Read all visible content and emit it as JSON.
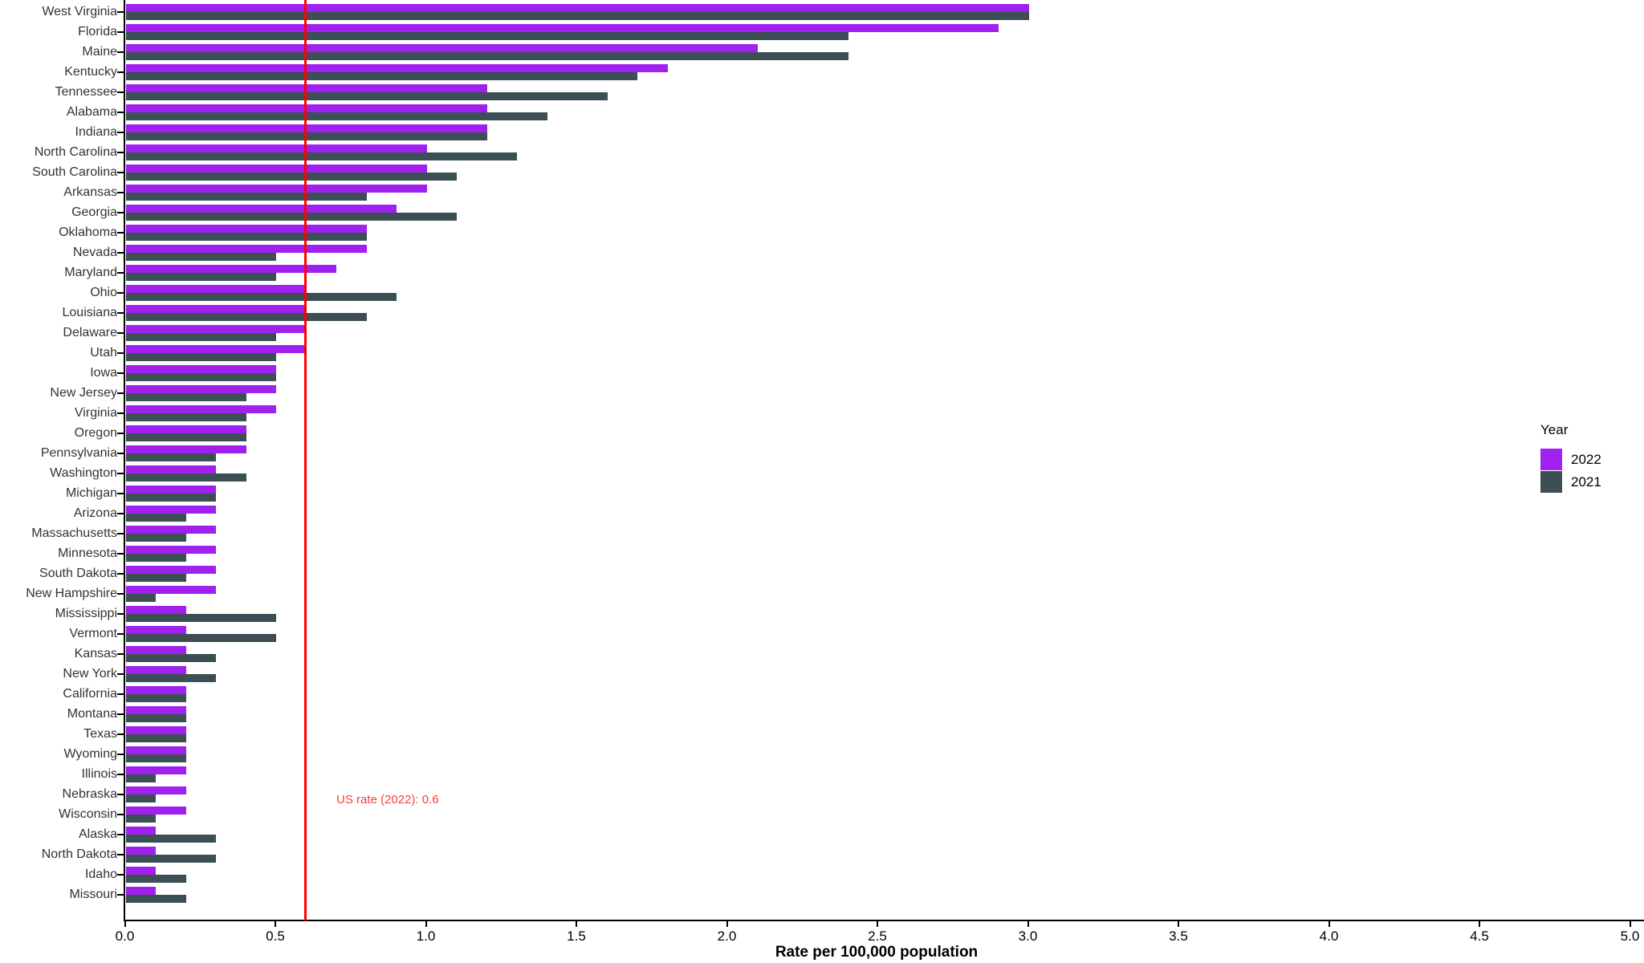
{
  "chart_data": {
    "type": "bar",
    "orientation": "horizontal",
    "title": "",
    "xlabel": "Rate per 100,000 population",
    "ylabel": "",
    "xlim": [
      0.0,
      5.0
    ],
    "xtick_labels": [
      "0.0",
      "0.5",
      "1.0",
      "1.5",
      "2.0",
      "2.5",
      "3.0",
      "3.5",
      "4.0",
      "4.5",
      "5.0"
    ],
    "grid": "off",
    "legend_position": "right",
    "legend_title": "Year",
    "categories": [
      "West Virginia",
      "Florida",
      "Maine",
      "Kentucky",
      "Tennessee",
      "Alabama",
      "Indiana",
      "North Carolina",
      "South Carolina",
      "Arkansas",
      "Georgia",
      "Oklahoma",
      "Nevada",
      "Maryland",
      "Ohio",
      "Louisiana",
      "Delaware",
      "Utah",
      "Iowa",
      "New Jersey",
      "Virginia",
      "Oregon",
      "Pennsylvania",
      "Washington",
      "Michigan",
      "Arizona",
      "Massachusetts",
      "Minnesota",
      "South Dakota",
      "New Hampshire",
      "Mississippi",
      "Vermont",
      "Kansas",
      "New York",
      "California",
      "Montana",
      "Texas",
      "Wyoming",
      "Illinois",
      "Nebraska",
      "Wisconsin",
      "Alaska",
      "North Dakota",
      "Idaho",
      "Missouri"
    ],
    "series": [
      {
        "name": "2022",
        "color": "#A020F0",
        "values": [
          3.0,
          2.9,
          2.1,
          1.8,
          1.2,
          1.2,
          1.2,
          1.0,
          1.0,
          1.0,
          0.9,
          0.8,
          0.8,
          0.7,
          0.6,
          0.6,
          0.6,
          0.6,
          0.5,
          0.5,
          0.5,
          0.4,
          0.4,
          0.3,
          0.3,
          0.3,
          0.3,
          0.3,
          0.3,
          0.3,
          0.2,
          0.2,
          0.2,
          0.2,
          0.2,
          0.2,
          0.2,
          0.2,
          0.2,
          0.2,
          0.2,
          0.1,
          0.1,
          0.1,
          0.1
        ]
      },
      {
        "name": "2021",
        "color": "#3C4F54",
        "values": [
          3.0,
          2.4,
          2.4,
          1.7,
          1.6,
          1.4,
          1.2,
          1.3,
          1.1,
          0.8,
          1.1,
          0.8,
          0.5,
          0.5,
          0.9,
          0.8,
          0.5,
          0.5,
          0.5,
          0.4,
          0.4,
          0.4,
          0.3,
          0.4,
          0.3,
          0.2,
          0.2,
          0.2,
          0.2,
          0.1,
          0.5,
          0.5,
          0.3,
          0.3,
          0.2,
          0.2,
          0.2,
          0.2,
          0.1,
          0.1,
          0.1,
          0.3,
          0.3,
          0.2,
          0.2
        ]
      }
    ],
    "reference_line": {
      "value": 0.6,
      "color": "#FF0000",
      "label": "US rate (2022): 0.6",
      "label_color": "#FF3B3B"
    }
  }
}
